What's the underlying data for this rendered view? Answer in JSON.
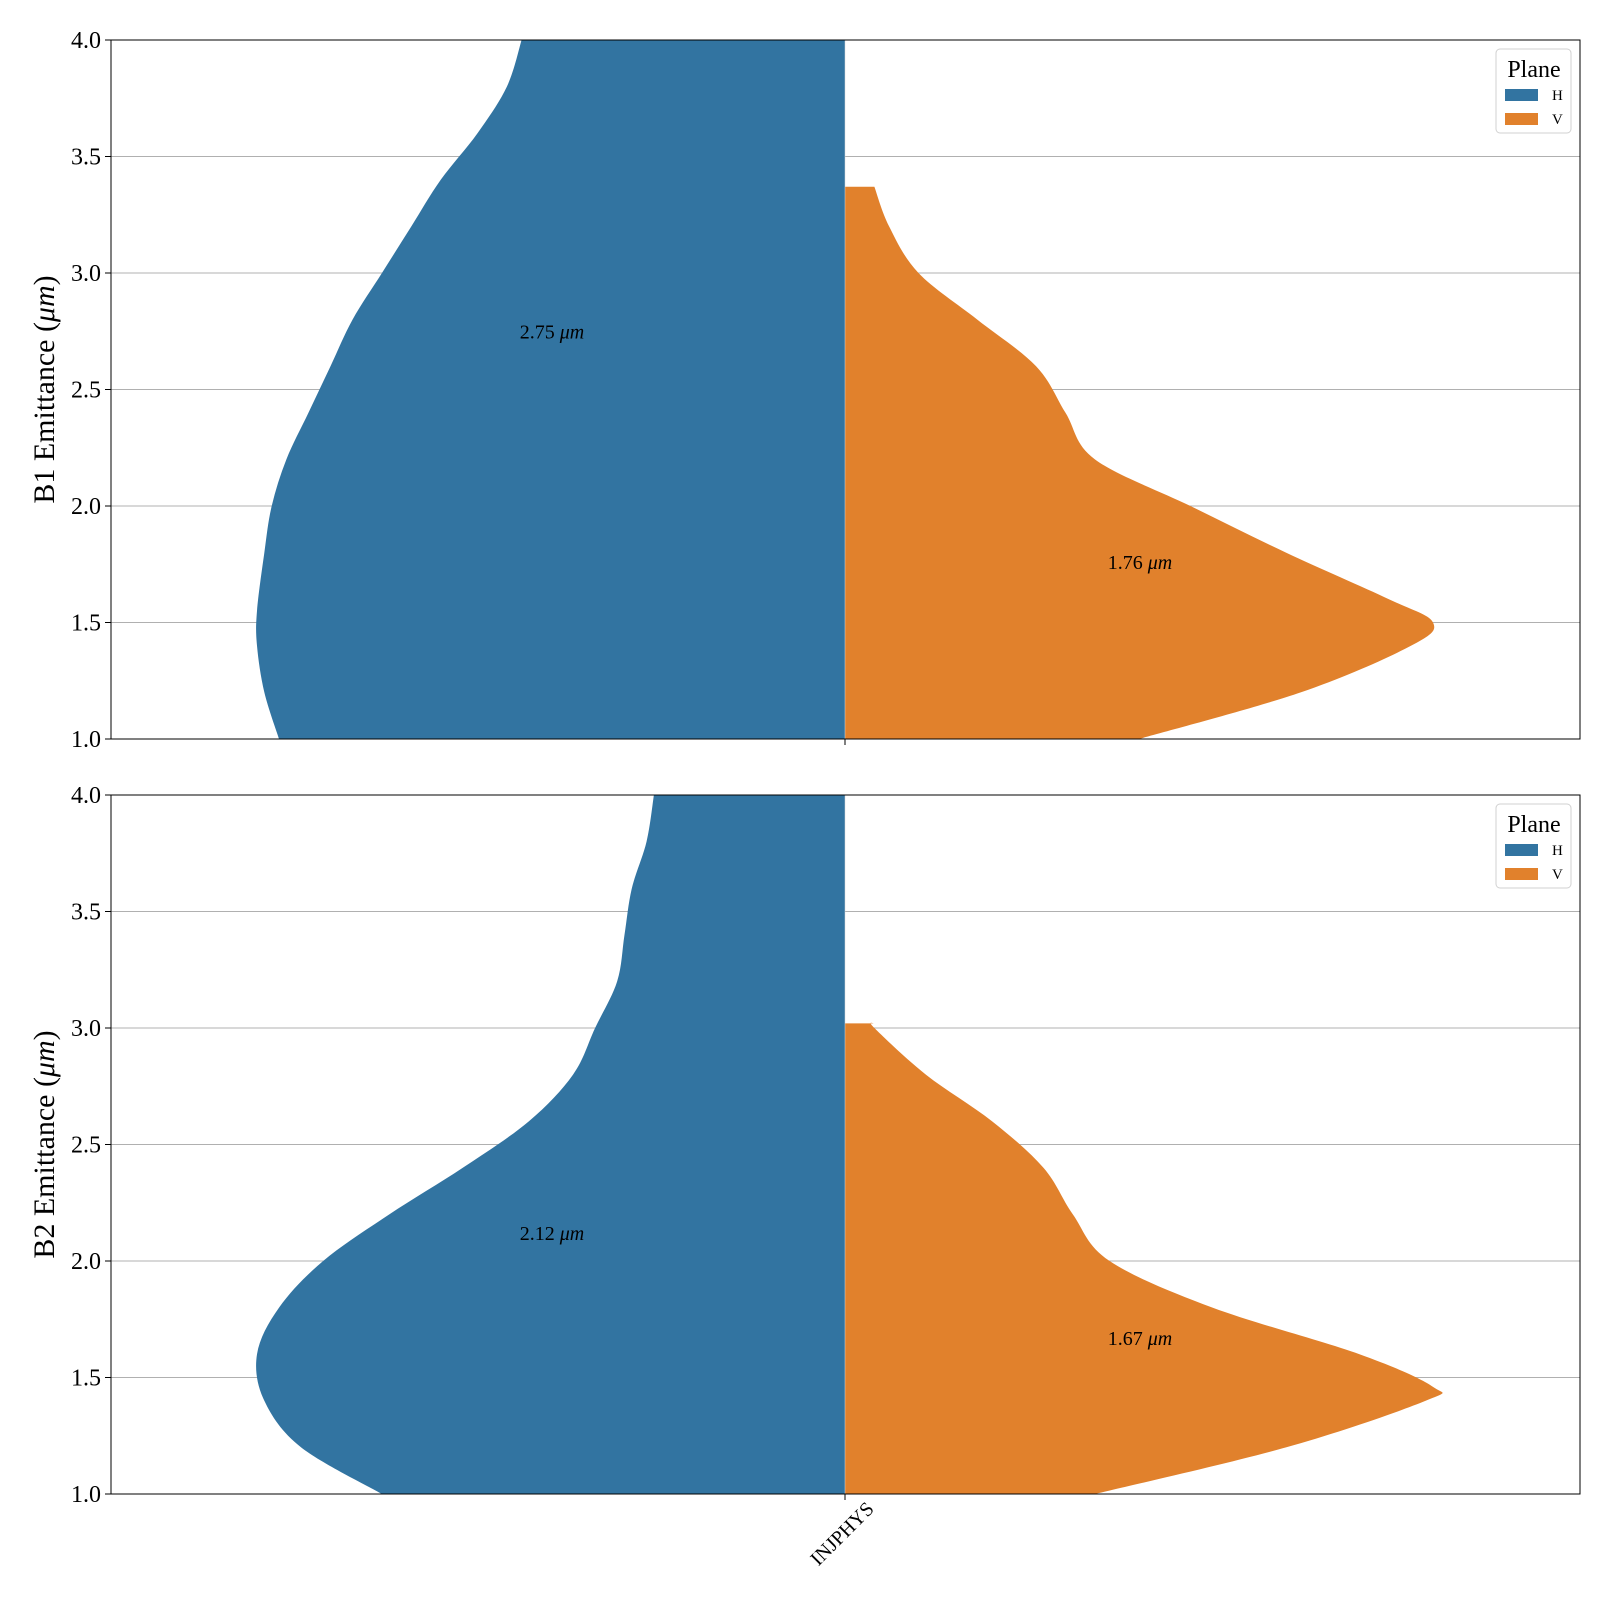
{
  "chart_data": [
    {
      "type": "violin",
      "ylabel_text": "B1 Emittance (",
      "ylabel_unit": "μm",
      "ylabel_close": ")",
      "ylim": [
        1.0,
        4.0
      ],
      "yticks": [
        "1.0",
        "1.5",
        "2.0",
        "2.5",
        "3.0",
        "3.5",
        "4.0"
      ],
      "grid": "y",
      "category": "INJPHYS",
      "legend": {
        "title": "Plane",
        "placement": "top-right",
        "entries": [
          "H",
          "V"
        ]
      },
      "series": [
        {
          "name": "H",
          "color": "#3274a1",
          "median_label_value": "2.75",
          "median_label_unit": "μm",
          "median_label_y": 2.75,
          "density": [
            [
              1.0,
              0.77
            ],
            [
              1.2,
              0.79
            ],
            [
              1.4,
              0.8
            ],
            [
              1.55,
              0.8
            ],
            [
              1.8,
              0.79
            ],
            [
              2.0,
              0.78
            ],
            [
              2.2,
              0.76
            ],
            [
              2.4,
              0.73
            ],
            [
              2.6,
              0.7
            ],
            [
              2.8,
              0.67
            ],
            [
              3.0,
              0.63
            ],
            [
              3.2,
              0.59
            ],
            [
              3.4,
              0.55
            ],
            [
              3.6,
              0.5
            ],
            [
              3.8,
              0.46
            ],
            [
              4.0,
              0.44
            ]
          ]
        },
        {
          "name": "V",
          "color": "#e1812c",
          "median_label_value": "1.76",
          "median_label_unit": "μm",
          "median_label_y": 1.76,
          "density": [
            [
              1.0,
              0.4
            ],
            [
              1.2,
              0.62
            ],
            [
              1.4,
              0.77
            ],
            [
              1.5,
              0.8
            ],
            [
              1.6,
              0.74
            ],
            [
              1.8,
              0.6
            ],
            [
              2.0,
              0.47
            ],
            [
              2.2,
              0.34
            ],
            [
              2.4,
              0.3
            ],
            [
              2.6,
              0.26
            ],
            [
              2.8,
              0.18
            ],
            [
              3.0,
              0.1
            ],
            [
              3.2,
              0.06
            ],
            [
              3.37,
              0.04
            ]
          ]
        }
      ]
    },
    {
      "type": "violin",
      "ylabel_text": "B2 Emittance (",
      "ylabel_unit": "μm",
      "ylabel_close": ")",
      "ylim": [
        1.0,
        4.0
      ],
      "yticks": [
        "1.0",
        "1.5",
        "2.0",
        "2.5",
        "3.0",
        "3.5",
        "4.0"
      ],
      "grid": "y",
      "category": "INJPHYS",
      "legend": {
        "title": "Plane",
        "placement": "top-right",
        "entries": [
          "H",
          "V"
        ]
      },
      "series": [
        {
          "name": "H",
          "color": "#3274a1",
          "median_label_value": "2.12",
          "median_label_unit": "μm",
          "median_label_y": 2.12,
          "density": [
            [
              1.0,
              0.63
            ],
            [
              1.2,
              0.74
            ],
            [
              1.4,
              0.79
            ],
            [
              1.6,
              0.8
            ],
            [
              1.8,
              0.77
            ],
            [
              2.0,
              0.71
            ],
            [
              2.2,
              0.62
            ],
            [
              2.4,
              0.52
            ],
            [
              2.6,
              0.43
            ],
            [
              2.8,
              0.37
            ],
            [
              3.0,
              0.34
            ],
            [
              3.2,
              0.31
            ],
            [
              3.4,
              0.3
            ],
            [
              3.6,
              0.29
            ],
            [
              3.8,
              0.27
            ],
            [
              4.0,
              0.26
            ]
          ]
        },
        {
          "name": "V",
          "color": "#e1812c",
          "median_label_value": "1.67",
          "median_label_unit": "μm",
          "median_label_y": 1.67,
          "density": [
            [
              1.0,
              0.34
            ],
            [
              1.2,
              0.6
            ],
            [
              1.4,
              0.79
            ],
            [
              1.46,
              0.8
            ],
            [
              1.6,
              0.7
            ],
            [
              1.8,
              0.5
            ],
            [
              2.0,
              0.36
            ],
            [
              2.2,
              0.31
            ],
            [
              2.4,
              0.27
            ],
            [
              2.6,
              0.2
            ],
            [
              2.8,
              0.11
            ],
            [
              3.0,
              0.04
            ],
            [
              3.02,
              0.04
            ]
          ]
        }
      ]
    }
  ]
}
